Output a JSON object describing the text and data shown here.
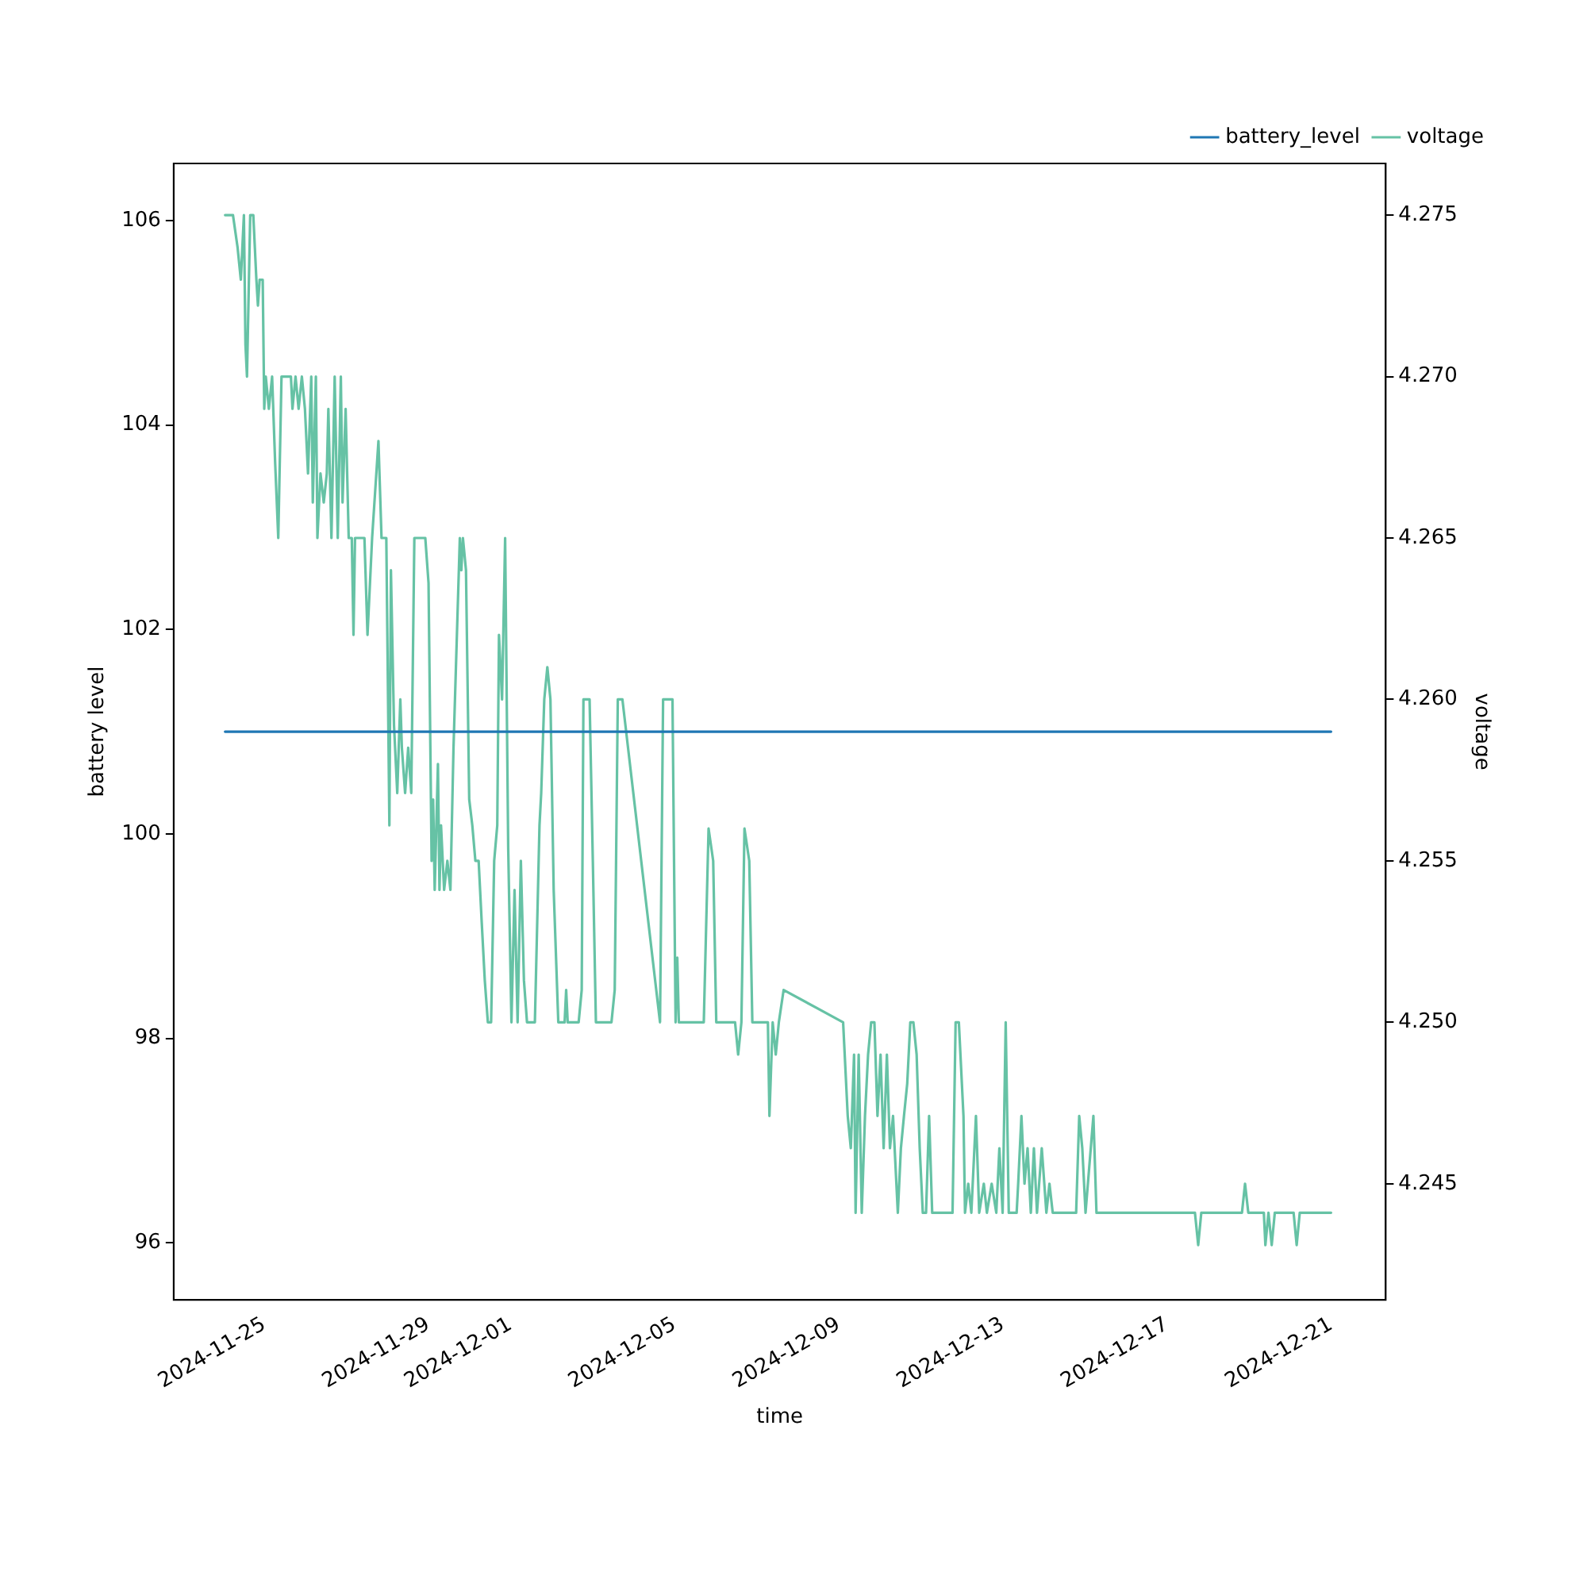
{
  "chart_data": {
    "type": "line",
    "xlabel": "time",
    "ylabel": "battery level",
    "y2label": "voltage",
    "legend": "top right",
    "xlim": [
      "2024-11-22T19:00",
      "2024-12-22T08:00"
    ],
    "xticks": [
      "2024-11-25",
      "2024-11-29",
      "2024-12-01",
      "2024-12-05",
      "2024-12-09",
      "2024-12-13",
      "2024-12-17",
      "2024-12-21"
    ],
    "ylim": [
      95.44,
      106.56
    ],
    "yticks": [
      96,
      98,
      100,
      102,
      104,
      106
    ],
    "y2lim": [
      4.2414,
      4.2766
    ],
    "y2ticks": [
      {
        "value": 4.245,
        "label": "4.245"
      },
      {
        "value": 4.25,
        "label": "4.250"
      },
      {
        "value": 4.255,
        "label": "4.255"
      },
      {
        "value": 4.26,
        "label": "4.260"
      },
      {
        "value": 4.265,
        "label": "4.265"
      },
      {
        "value": 4.27,
        "label": "4.270"
      },
      {
        "value": 4.275,
        "label": "4.275"
      }
    ],
    "series": [
      {
        "name": "battery_level",
        "color": "#1f77b4",
        "axis": "y",
        "x": [
          "2024-11-24T01:06",
          "2024-12-21T00:00"
        ],
        "values": [
          101,
          101
        ]
      },
      {
        "name": "voltage",
        "color": "#66c2a5",
        "axis": "y2",
        "x": [
          "2024-11-24T01:06",
          "2024-11-24T05:42",
          "2024-11-24T08:24",
          "2024-11-24T10:18",
          "2024-11-24T12:06",
          "2024-11-24T13:00",
          "2024-11-24T13:54",
          "2024-11-24T15:48",
          "2024-11-24T17:36",
          "2024-11-24T19:24",
          "2024-11-24T20:18",
          "2024-11-24T21:18",
          "2024-11-24T23:06",
          "2024-11-25T00:00",
          "2024-11-25T00:54",
          "2024-11-25T02:42",
          "2024-11-25T04:36",
          "2024-11-25T06:24",
          "2024-11-25T08:12",
          "2024-11-25T10:06",
          "2024-11-25T11:54",
          "2024-11-25T15:36",
          "2024-11-25T16:30",
          "2024-11-25T18:18",
          "2024-11-25T20:06",
          "2024-11-25T22:00",
          "2024-11-25T23:48",
          "2024-11-26T01:36",
          "2024-11-26T03:30",
          "2024-11-26T04:24",
          "2024-11-26T06:12",
          "2024-11-26T07:06",
          "2024-11-26T08:54",
          "2024-11-26T10:48",
          "2024-11-26T12:36",
          "2024-11-26T13:30",
          "2024-11-26T15:18",
          "2024-11-26T17:12",
          "2024-11-26T19:00",
          "2024-11-26T20:48",
          "2024-11-26T21:48",
          "2024-11-26T23:36",
          "2024-11-27T01:24",
          "2024-11-27T03:12",
          "2024-11-27T04:12",
          "2024-11-27T05:06",
          "2024-11-27T10:36",
          "2024-11-27T12:24",
          "2024-11-27T15:06",
          "2024-11-27T18:48",
          "2024-11-27T20:36",
          "2024-11-27T23:24",
          "2024-11-28T01:12",
          "2024-11-28T02:06",
          "2024-11-28T03:54",
          "2024-11-28T05:48",
          "2024-11-28T07:36",
          "2024-11-28T08:30",
          "2024-11-28T10:24",
          "2024-11-28T12:12",
          "2024-11-28T14:00",
          "2024-11-28T15:48",
          "2024-11-28T22:12",
          "2024-11-29T00:06",
          "2024-11-29T01:54",
          "2024-11-29T02:48",
          "2024-11-29T03:42",
          "2024-11-29T05:36",
          "2024-11-29T06:30",
          "2024-11-29T07:24",
          "2024-11-29T09:12",
          "2024-11-29T11:06",
          "2024-11-29T12:54",
          "2024-11-29T14:42",
          "2024-11-29T18:24",
          "2024-11-29T19:18",
          "2024-11-29T20:12",
          "2024-11-29T22:00",
          "2024-11-29T23:54",
          "2024-11-30T01:42",
          "2024-11-30T03:30",
          "2024-11-30T05:24",
          "2024-11-30T07:12",
          "2024-11-30T09:00",
          "2024-11-30T10:48",
          "2024-11-30T12:42",
          "2024-11-30T14:30",
          "2024-11-30T16:18",
          "2024-11-30T17:18",
          "2024-11-30T19:06",
          "2024-11-30T20:54",
          "2024-11-30T22:42",
          "2024-12-01T00:36",
          "2024-12-01T02:24",
          "2024-12-01T04:12",
          "2024-12-01T06:06",
          "2024-12-01T07:54",
          "2024-12-01T09:42",
          "2024-12-01T11:36",
          "2024-12-01T14:18",
          "2024-12-01T17:00",
          "2024-12-01T18:00",
          "2024-12-01T19:48",
          "2024-12-01T21:36",
          "2024-12-01T23:24",
          "2024-12-02T01:18",
          "2024-12-02T04:00",
          "2024-12-02T07:42",
          "2024-12-02T08:36",
          "2024-12-02T09:30",
          "2024-12-02T15:54",
          "2024-12-02T17:42",
          "2024-12-02T18:42",
          "2024-12-02T22:18",
          "2024-12-03T00:12",
          "2024-12-03T02:00",
          "2024-12-03T11:06",
          "2024-12-03T13:00",
          "2024-12-03T14:48",
          "2024-12-03T17:30",
          "2024-12-04T15:30",
          "2024-12-04T17:18",
          "2024-12-04T22:48",
          "2024-12-05T00:36",
          "2024-12-05T01:36",
          "2024-12-05T02:30",
          "2024-12-05T17:06",
          "2024-12-05T19:54",
          "2024-12-05T22:36",
          "2024-12-06T00:24",
          "2024-12-06T11:24",
          "2024-12-06T13:12",
          "2024-12-06T15:06",
          "2024-12-06T16:54",
          "2024-12-06T19:42",
          "2024-12-06T21:30",
          "2024-12-07T06:36",
          "2024-12-07T07:30",
          "2024-12-07T09:24",
          "2024-12-07T11:12",
          "2024-12-07T13:00",
          "2024-12-07T15:48",
          "2024-12-09T02:36",
          "2024-12-09T05:18",
          "2024-12-09T07:06",
          "2024-12-09T09:00",
          "2024-12-09T09:54",
          "2024-12-09T11:42",
          "2024-12-09T13:30",
          "2024-12-09T15:24",
          "2024-12-09T17:12",
          "2024-12-09T19:00",
          "2024-12-09T20:54",
          "2024-12-09T22:42",
          "2024-12-10T00:30",
          "2024-12-10T02:18",
          "2024-12-10T04:12",
          "2024-12-10T06:00",
          "2024-12-10T07:48",
          "2024-12-10T10:36",
          "2024-12-10T12:24",
          "2024-12-10T14:12",
          "2024-12-10T16:06",
          "2024-12-10T17:54",
          "2024-12-10T19:42",
          "2024-12-10T21:36",
          "2024-12-10T23:24",
          "2024-12-11T01:12",
          "2024-12-11T03:06",
          "2024-12-11T04:54",
          "2024-12-11T06:42",
          "2024-12-11T10:24",
          "2024-12-11T18:36",
          "2024-12-11T20:24",
          "2024-12-11T22:18",
          "2024-12-12T01:00",
          "2024-12-12T01:54",
          "2024-12-12T03:48",
          "2024-12-12T05:36",
          "2024-12-12T08:18",
          "2024-12-12T10:12",
          "2024-12-12T12:54",
          "2024-12-12T14:42",
          "2024-12-12T17:30",
          "2024-12-12T20:12",
          "2024-12-12T22:00",
          "2024-12-12T23:54",
          "2024-12-13T01:42",
          "2024-12-13T03:30",
          "2024-12-13T08:06",
          "2024-12-13T09:00",
          "2024-12-13T10:54",
          "2024-12-13T12:42",
          "2024-12-13T14:30",
          "2024-12-13T16:24",
          "2024-12-13T18:12",
          "2024-12-13T20:00",
          "2024-12-13T22:48",
          "2024-12-14T01:30",
          "2024-12-14T03:18",
          "2024-12-14T05:12",
          "2024-12-14T11:36",
          "2024-12-14T18:54",
          "2024-12-14T20:42",
          "2024-12-14T22:30",
          "2024-12-15T00:24",
          "2024-12-15T05:00",
          "2024-12-15T06:48",
          "2024-12-17T16:24",
          "2024-12-17T18:18",
          "2024-12-17T20:06",
          "2024-12-18T19:54",
          "2024-12-18T21:42",
          "2024-12-18T23:36",
          "2024-12-19T08:42",
          "2024-12-19T09:36",
          "2024-12-19T11:24",
          "2024-12-19T13:18",
          "2024-12-19T15:06",
          "2024-12-20T02:06",
          "2024-12-20T03:54",
          "2024-12-20T05:42",
          "2024-12-21T00:00"
        ],
        "values": [
          4.275,
          4.275,
          4.274,
          4.273,
          4.275,
          4.271,
          4.27,
          4.275,
          4.275,
          4.273,
          4.2722,
          4.273,
          4.273,
          4.269,
          4.27,
          4.269,
          4.27,
          4.2673,
          4.265,
          4.27,
          4.27,
          4.27,
          4.269,
          4.27,
          4.269,
          4.27,
          4.269,
          4.267,
          4.27,
          4.2661,
          4.27,
          4.265,
          4.267,
          4.2661,
          4.267,
          4.269,
          4.265,
          4.27,
          4.265,
          4.27,
          4.2661,
          4.269,
          4.265,
          4.265,
          4.262,
          4.265,
          4.265,
          4.262,
          4.265,
          4.268,
          4.265,
          4.265,
          4.2561,
          4.264,
          4.2592,
          4.2571,
          4.26,
          4.2585,
          4.2571,
          4.2585,
          4.2571,
          4.265,
          4.265,
          4.2636,
          4.255,
          4.2569,
          4.2541,
          4.258,
          4.2541,
          4.2561,
          4.2541,
          4.255,
          4.2541,
          4.2585,
          4.265,
          4.264,
          4.265,
          4.264,
          4.2569,
          4.2561,
          4.255,
          4.255,
          4.2531,
          4.2513,
          4.25,
          4.25,
          4.255,
          4.2561,
          4.262,
          4.26,
          4.265,
          4.2554,
          4.25,
          4.2541,
          4.25,
          4.255,
          4.2513,
          4.25,
          4.25,
          4.25,
          4.2561,
          4.2571,
          4.26,
          4.261,
          4.26,
          4.2541,
          4.25,
          4.25,
          4.251,
          4.25,
          4.25,
          4.251,
          4.26,
          4.26,
          4.255,
          4.25,
          4.25,
          4.251,
          4.26,
          4.26,
          4.25,
          4.26,
          4.26,
          4.25,
          4.252,
          4.25,
          4.25,
          4.256,
          4.255,
          4.25,
          4.25,
          4.249,
          4.25,
          4.256,
          4.255,
          4.25,
          4.25,
          4.2471,
          4.25,
          4.249,
          4.25,
          4.251,
          4.25,
          4.2471,
          4.2461,
          4.249,
          4.2441,
          4.249,
          4.2441,
          4.2471,
          4.249,
          4.25,
          4.25,
          4.2471,
          4.249,
          4.2461,
          4.249,
          4.2461,
          4.2471,
          4.2441,
          4.2461,
          4.2471,
          4.2481,
          4.25,
          4.25,
          4.249,
          4.2461,
          4.2441,
          4.2441,
          4.2471,
          4.2441,
          4.2441,
          4.2441,
          4.25,
          4.25,
          4.2471,
          4.2441,
          4.245,
          4.2441,
          4.2471,
          4.2441,
          4.245,
          4.2441,
          4.245,
          4.2441,
          4.2461,
          4.2441,
          4.25,
          4.2441,
          4.2441,
          4.245,
          4.2471,
          4.245,
          4.2461,
          4.2441,
          4.2461,
          4.2441,
          4.2461,
          4.2441,
          4.245,
          4.2441,
          4.2441,
          4.2441,
          4.2471,
          4.2461,
          4.2441,
          4.2471,
          4.2441,
          4.2441,
          4.2431,
          4.2441,
          4.2441,
          4.245,
          4.2441,
          4.2441,
          4.2431,
          4.2441,
          4.2431,
          4.2441,
          4.2441,
          4.2431,
          4.2441,
          4.2441
        ]
      }
    ]
  }
}
